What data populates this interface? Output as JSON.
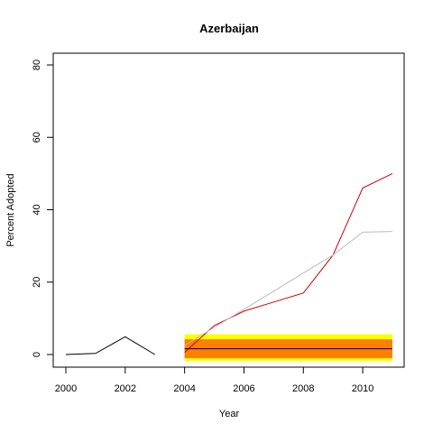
{
  "chart_data": {
    "type": "line",
    "title": "Azerbaijan",
    "xlabel": "Year",
    "ylabel": "Percent Adopted",
    "xlim": [
      2000,
      2011
    ],
    "ylim": [
      0,
      80
    ],
    "x_ticks": [
      2000,
      2002,
      2004,
      2006,
      2008,
      2010
    ],
    "y_ticks": [
      0,
      20,
      40,
      60,
      80
    ],
    "grid": false,
    "series": [
      {
        "color": "#000000",
        "x": [
          2000,
          2001,
          2002,
          2003
        ],
        "y": [
          0,
          0.3,
          4.9,
          0
        ]
      },
      {
        "color": "#d40000",
        "x": [
          2004,
          2005,
          2006,
          2007,
          2008,
          2009,
          2010,
          2011
        ],
        "y": [
          0.6,
          8.0,
          12.0,
          14.5,
          17.0,
          27.5,
          46.0,
          50.0
        ]
      },
      {
        "color": "#bbbbbb",
        "x": [
          2004,
          2005,
          2006,
          2007,
          2008,
          2009,
          2010,
          2011
        ],
        "y": [
          2.5,
          7.5,
          12.5,
          17.5,
          22.5,
          27.5,
          33.8,
          34.0
        ]
      },
      {
        "color": "#000000",
        "x": [
          2004,
          2011
        ],
        "y": [
          1.6,
          1.6
        ]
      }
    ],
    "bands": [
      {
        "color": "#ffff00",
        "x": [
          2004,
          2011
        ],
        "y": [
          -1.8,
          5.6
        ]
      },
      {
        "color": "#ff7f00",
        "x": [
          2004,
          2011
        ],
        "y": [
          -1.0,
          4.2
        ]
      }
    ]
  }
}
